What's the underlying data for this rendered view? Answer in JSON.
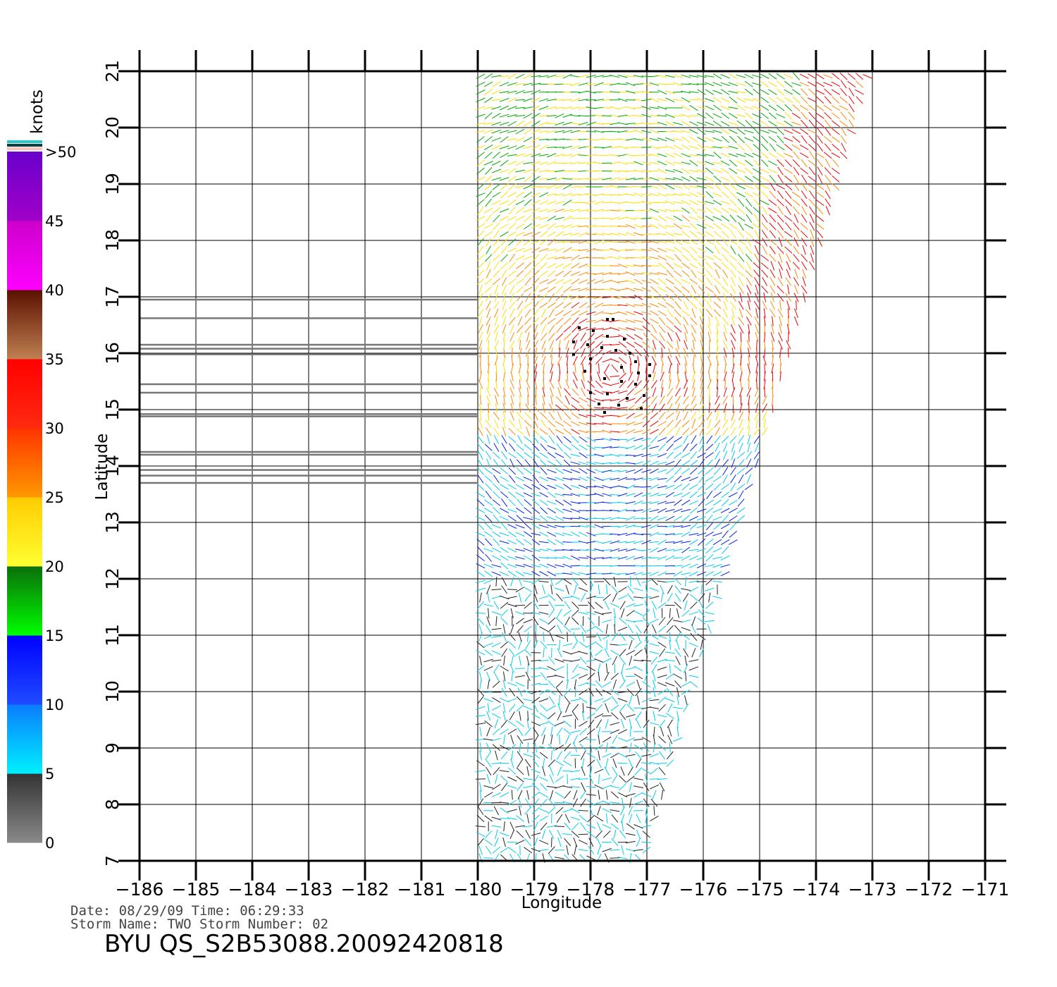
{
  "map": {
    "xlabel": "Longitude",
    "ylabel": "Latitude",
    "lon_range": [
      -186,
      -171
    ],
    "lat_range": [
      7,
      21
    ],
    "lon_ticks": [
      "−186",
      "−185",
      "−184",
      "−183",
      "−182",
      "−181",
      "−180",
      "−179",
      "−178",
      "−177",
      "−176",
      "−175",
      "−174",
      "−173",
      "−172",
      "−171"
    ],
    "lat_ticks": [
      "7",
      "8",
      "9",
      "10",
      "11",
      "12",
      "13",
      "14",
      "15",
      "16",
      "17",
      "18",
      "19",
      "20",
      "21"
    ],
    "grid": true,
    "swath": {
      "lon_range_at_lat7": [
        -180,
        -177
      ],
      "lon_range_at_lat21": [
        -180,
        -173
      ],
      "description_colors": "wind barbs colored by speed"
    }
  },
  "colorbar": {
    "unit": "knots",
    "labels": [
      ">50",
      "45",
      "40",
      "35",
      "30",
      "25",
      "20",
      "15",
      "10",
      "5",
      "0"
    ],
    "segments": [
      {
        "from": 0,
        "to": 5,
        "top": "#333333",
        "bottom": "#8a8a8a"
      },
      {
        "from": 5,
        "to": 10,
        "top": "#0a7cff",
        "bottom": "#00f0ff"
      },
      {
        "from": 10,
        "to": 15,
        "top": "#0000ff",
        "bottom": "#1f4cff"
      },
      {
        "from": 15,
        "to": 20,
        "top": "#0a6e0a",
        "bottom": "#00ff00"
      },
      {
        "from": 20,
        "to": 25,
        "top": "#ffcc00",
        "bottom": "#ffff33"
      },
      {
        "from": 25,
        "to": 30,
        "top": "#ff3300",
        "bottom": "#ff9900"
      },
      {
        "from": 30,
        "to": 35,
        "top": "#ff0000",
        "bottom": "#ff2a10"
      },
      {
        "from": 35,
        "to": 40,
        "top": "#5a1000",
        "bottom": "#c08050"
      },
      {
        "from": 40,
        "to": 45,
        "top": "#cc00cc",
        "bottom": "#ff00ff"
      },
      {
        "from": 45,
        "to": 50,
        "top": "#6a00cc",
        "bottom": "#a000c8"
      }
    ]
  },
  "info": {
    "line1": "Date: 08/29/09   Time: 06:29:33",
    "line2": "Storm  Name: TWO    Storm  Number: 02",
    "title": "BYU  QS_S2B53088.20092420818"
  }
}
